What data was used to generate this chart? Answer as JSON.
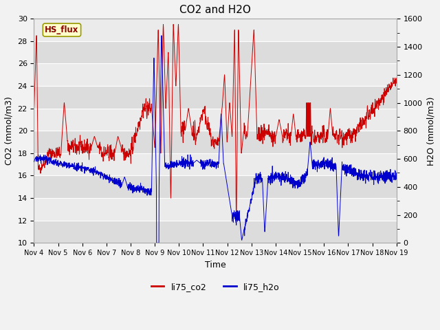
{
  "title": "CO2 and H2O",
  "xlabel": "Time",
  "ylabel_left": "CO2 (mmol/m3)",
  "ylabel_right": "H2O (mmol/m3)",
  "legend_label": "HS_flux",
  "series1_label": "li75_co2",
  "series2_label": "li75_h2o",
  "series1_color": "#cc0000",
  "series2_color": "#0000cc",
  "ylim_left": [
    10,
    30
  ],
  "ylim_right": [
    0,
    1600
  ],
  "xtick_labels": [
    "Nov 4",
    "Nov 5",
    "Nov 6",
    "Nov 7",
    "Nov 8",
    "Nov 9",
    "Nov 10",
    "Nov 11",
    "Nov 12",
    "Nov 13",
    "Nov 14",
    "Nov 15",
    "Nov 16",
    "Nov 17",
    "Nov 18",
    "Nov 19"
  ],
  "fig_bg_color": "#f2f2f2",
  "plot_bg_light": "#ebebeb",
  "plot_bg_dark": "#dcdcdc",
  "grid_color": "#ffffff",
  "title_fontsize": 11,
  "axis_fontsize": 9,
  "tick_fontsize": 8,
  "legend_box_facecolor": "#ffffcc",
  "legend_box_edgecolor": "#999900",
  "legend_text_color": "#8b0000"
}
